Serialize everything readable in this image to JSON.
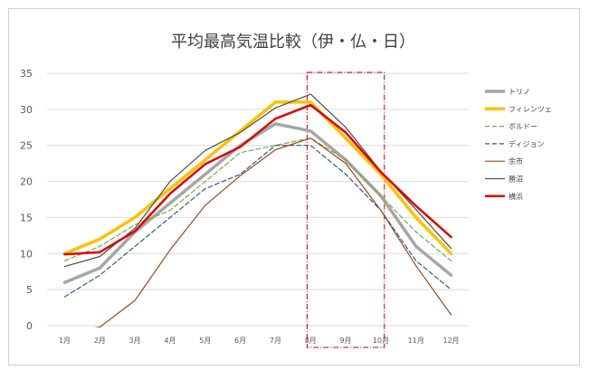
{
  "chart_data": {
    "type": "line",
    "title": "平均最高気温比較（伊・仏・日）",
    "xlabel": "",
    "ylabel": "",
    "categories": [
      "1月",
      "2月",
      "3月",
      "4月",
      "5月",
      "6月",
      "7月",
      "8月",
      "9月",
      "10月",
      "11月",
      "12月"
    ],
    "ylim": [
      0,
      35
    ],
    "yticks": [
      0,
      5,
      10,
      15,
      20,
      25,
      30,
      35
    ],
    "grid": true,
    "legend_position": "right",
    "highlight": {
      "from_category": "8月",
      "to_category": "10月",
      "style": "red dash-dot box"
    },
    "series": [
      {
        "name": "トリノ",
        "color": "#a6a6a6",
        "dash": "solid",
        "width": 3.5,
        "values": [
          6,
          8,
          13,
          17,
          21,
          25,
          28,
          27,
          23,
          18,
          11,
          7
        ]
      },
      {
        "name": "フィレンツェ",
        "color": "#ffc000",
        "dash": "solid",
        "width": 3.5,
        "values": [
          10,
          12,
          15,
          19,
          23,
          27,
          31,
          31,
          26,
          21,
          15,
          10
        ]
      },
      {
        "name": "ボルドー",
        "color": "#70ad47",
        "dash": "dashed",
        "width": 1.2,
        "values": [
          9,
          11,
          14,
          16,
          20,
          24,
          25,
          26,
          23,
          18,
          13,
          9
        ]
      },
      {
        "name": "ディジョン",
        "color": "#2e5c8a",
        "dash": "dashed",
        "width": 1.2,
        "values": [
          4,
          7,
          11,
          15,
          19,
          21,
          25,
          25,
          21,
          16,
          9,
          5
        ]
      },
      {
        "name": "余市",
        "color": "#9c4a14",
        "dash": "solid",
        "width": 1.2,
        "values": [
          -1,
          -0.2,
          3.5,
          10.5,
          16.7,
          20.8,
          24.4,
          26,
          22.5,
          16,
          8.3,
          1.5
        ]
      },
      {
        "name": "勝沼",
        "color": "#4d4d4d",
        "dash": "solid",
        "width": 1.2,
        "values": [
          8.2,
          9.6,
          13.5,
          20,
          24.3,
          26.8,
          30.2,
          32.1,
          27.5,
          21.4,
          16.1,
          10.7
        ]
      },
      {
        "name": "横浜",
        "color": "#e00000",
        "dash": "solid",
        "width": 2.5,
        "values": [
          9.9,
          10.2,
          13.1,
          18.3,
          22.4,
          24.8,
          28.7,
          30.6,
          26.8,
          21.3,
          16.6,
          12.3
        ]
      }
    ]
  }
}
